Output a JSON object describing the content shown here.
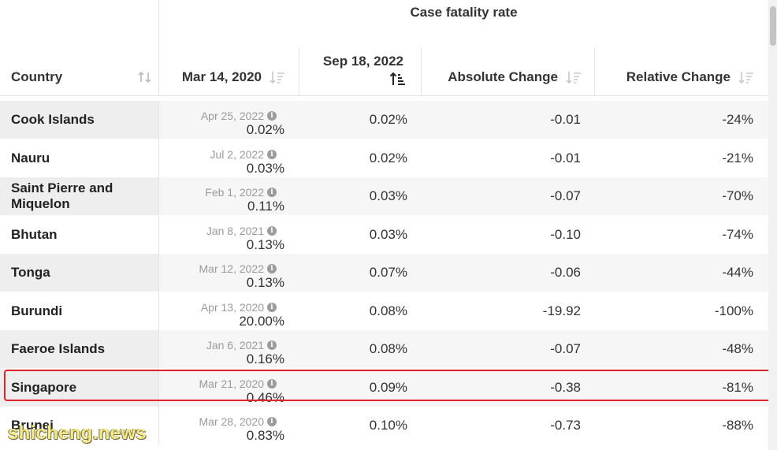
{
  "header": {
    "group_title": "Case fatality rate",
    "columns": {
      "country": "Country",
      "mar": "Mar 14, 2020",
      "sep": "Sep 18, 2022",
      "abs": "Absolute Change",
      "rel": "Relative Change"
    }
  },
  "icons": {
    "sort": "sort-icon",
    "sort_active": "sort-ascending-icon",
    "info": "info-icon"
  },
  "rows": [
    {
      "country": "Cook Islands",
      "mar_date": "Apr 25, 2022",
      "mar_value": "0.02%",
      "sep_value": "0.02%",
      "abs": "-0.01",
      "rel": "-24%"
    },
    {
      "country": "Nauru",
      "mar_date": "Jul 2, 2022",
      "mar_value": "0.03%",
      "sep_value": "0.02%",
      "abs": "-0.01",
      "rel": "-21%"
    },
    {
      "country": "Saint Pierre and Miquelon",
      "mar_date": "Feb 1, 2022",
      "mar_value": "0.11%",
      "sep_value": "0.03%",
      "abs": "-0.07",
      "rel": "-70%"
    },
    {
      "country": "Bhutan",
      "mar_date": "Jan 8, 2021",
      "mar_value": "0.13%",
      "sep_value": "0.03%",
      "abs": "-0.10",
      "rel": "-74%"
    },
    {
      "country": "Tonga",
      "mar_date": "Mar 12, 2022",
      "mar_value": "0.13%",
      "sep_value": "0.07%",
      "abs": "-0.06",
      "rel": "-44%"
    },
    {
      "country": "Burundi",
      "mar_date": "Apr 13, 2020",
      "mar_value": "20.00%",
      "sep_value": "0.08%",
      "abs": "-19.92",
      "rel": "-100%"
    },
    {
      "country": "Faeroe Islands",
      "mar_date": "Jan 6, 2021",
      "mar_value": "0.16%",
      "sep_value": "0.08%",
      "abs": "-0.07",
      "rel": "-48%"
    },
    {
      "country": "Singapore",
      "mar_date": "Mar 21, 2020",
      "mar_value": "0.46%",
      "sep_value": "0.09%",
      "abs": "-0.38",
      "rel": "-81%"
    },
    {
      "country": "Brunei",
      "mar_date": "Mar 28, 2020",
      "mar_value": "0.83%",
      "sep_value": "0.10%",
      "abs": "-0.73",
      "rel": "-88%"
    }
  ],
  "watermark": "shicheng.news",
  "colors": {
    "highlight": "#e0252a",
    "row_alt": "#f6f6f6"
  }
}
